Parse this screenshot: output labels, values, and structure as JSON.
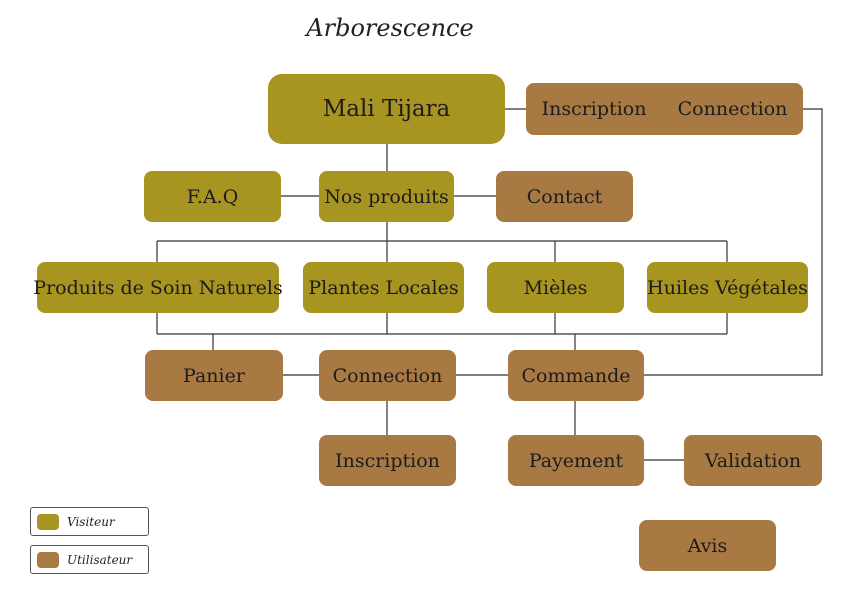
{
  "title": "Arborescence",
  "colors": {
    "visiteur": "#a89421",
    "utilisateur": "#a97944",
    "line": "#333333"
  },
  "nodes": {
    "root": "Mali Tijara",
    "auth_inscription": "Inscription",
    "auth_connection": "Connection",
    "faq": "F.A.Q",
    "nos_produits": "Nos produits",
    "contact": "Contact",
    "soins": "Produits de Soin Naturels",
    "plantes": "Plantes Locales",
    "mieles": "Mièles",
    "huiles": "Huiles Végétales",
    "panier": "Panier",
    "connection": "Connection",
    "commande": "Commande",
    "inscription": "Inscription",
    "payement": "Payement",
    "validation": "Validation",
    "avis": "Avis"
  },
  "legend": {
    "visiteur": "Visiteur",
    "utilisateur": "Utilisateur"
  }
}
